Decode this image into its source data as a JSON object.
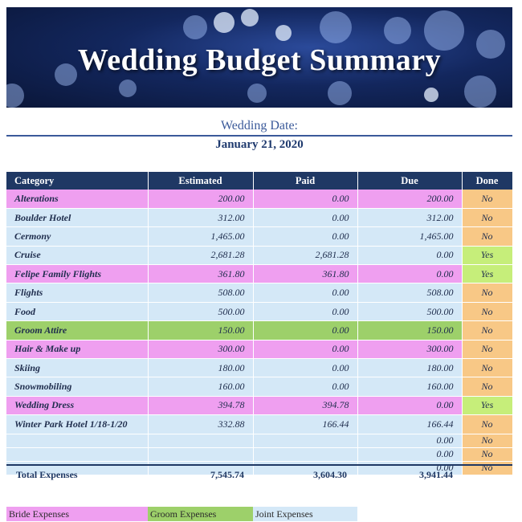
{
  "title": "Wedding Budget Summary",
  "date_label": "Wedding Date:",
  "date_value": "January 21, 2020",
  "columns": [
    "Category",
    "Estimated",
    "Paid",
    "Due",
    "Done"
  ],
  "rows": [
    {
      "category": "Alterations",
      "estimated": "200.00",
      "paid": "0.00",
      "due": "200.00",
      "done": "No",
      "group": "bride"
    },
    {
      "category": "Boulder Hotel",
      "estimated": "312.00",
      "paid": "0.00",
      "due": "312.00",
      "done": "No",
      "group": "joint"
    },
    {
      "category": "Cermony",
      "estimated": "1,465.00",
      "paid": "0.00",
      "due": "1,465.00",
      "done": "No",
      "group": "joint"
    },
    {
      "category": "Cruise",
      "estimated": "2,681.28",
      "paid": "2,681.28",
      "due": "0.00",
      "done": "Yes",
      "group": "joint"
    },
    {
      "category": "Felipe Family Flights",
      "estimated": "361.80",
      "paid": "361.80",
      "due": "0.00",
      "done": "Yes",
      "group": "bride"
    },
    {
      "category": "Flights",
      "estimated": "508.00",
      "paid": "0.00",
      "due": "508.00",
      "done": "No",
      "group": "joint"
    },
    {
      "category": "Food",
      "estimated": "500.00",
      "paid": "0.00",
      "due": "500.00",
      "done": "No",
      "group": "joint"
    },
    {
      "category": "Groom Attire",
      "estimated": "150.00",
      "paid": "0.00",
      "due": "150.00",
      "done": "No",
      "group": "groom"
    },
    {
      "category": "Hair & Make up",
      "estimated": "300.00",
      "paid": "0.00",
      "due": "300.00",
      "done": "No",
      "group": "bride"
    },
    {
      "category": "Skiing",
      "estimated": "180.00",
      "paid": "0.00",
      "due": "180.00",
      "done": "No",
      "group": "joint"
    },
    {
      "category": "Snowmobiling",
      "estimated": "160.00",
      "paid": "0.00",
      "due": "160.00",
      "done": "No",
      "group": "joint"
    },
    {
      "category": "Wedding Dress",
      "estimated": "394.78",
      "paid": "394.78",
      "due": "0.00",
      "done": "Yes",
      "group": "bride"
    },
    {
      "category": "Winter Park Hotel 1/18-1/20",
      "estimated": "332.88",
      "paid": "166.44",
      "due": "166.44",
      "done": "No",
      "group": "joint"
    },
    {
      "category": "",
      "estimated": "",
      "paid": "",
      "due": "0.00",
      "done": "No",
      "group": "joint"
    },
    {
      "category": "",
      "estimated": "",
      "paid": "",
      "due": "0.00",
      "done": "No",
      "group": "joint"
    },
    {
      "category": "",
      "estimated": "",
      "paid": "",
      "due": "0.00",
      "done": "No",
      "group": "joint"
    }
  ],
  "totals": {
    "label": "Total Expenses",
    "estimated": "7,545.74",
    "paid": "3,604.30",
    "due": "3,941.44"
  },
  "legend": {
    "bride": "Bride Expenses",
    "groom": "Groom Expenses",
    "joint": "Joint Expenses"
  },
  "colors": {
    "header": "#1f3864",
    "bride": "#ef9ff0",
    "groom": "#9dd06a",
    "joint": "#d4e8f7",
    "done_no": "#f8c886",
    "done_yes": "#c6ee7a"
  }
}
